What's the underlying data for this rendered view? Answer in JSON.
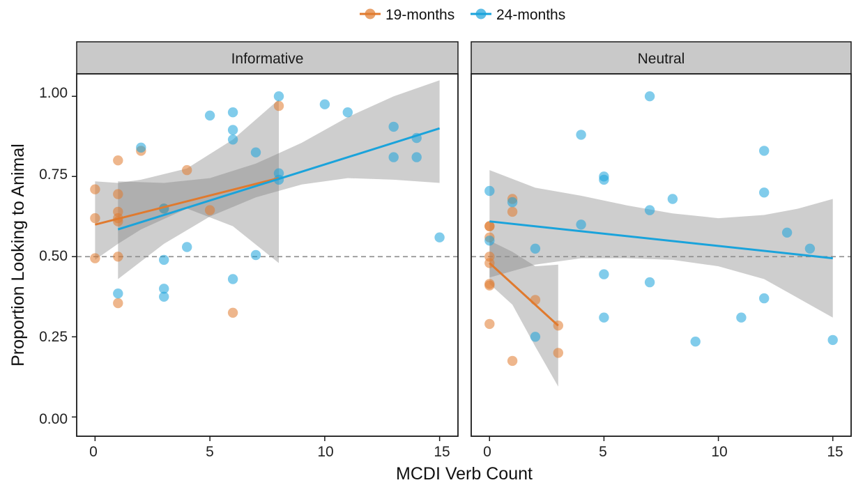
{
  "chart_data": {
    "type": "scatter",
    "xlabel": "MCDI Verb Count",
    "ylabel": "Proportion Looking to Animal",
    "xlim": [
      -0.8,
      15.8
    ],
    "ylim": [
      -0.06,
      1.07
    ],
    "x_ticks": [
      0,
      5,
      10,
      15
    ],
    "y_ticks": [
      0,
      0.25,
      0.5,
      0.75,
      1
    ],
    "x_tick_labels": [
      "0",
      "5",
      "10",
      "15"
    ],
    "y_tick_labels": [
      "0.00",
      "0.25",
      "0.50",
      "0.75",
      "1.00"
    ],
    "reference_line": {
      "y": 0.5,
      "style": "dashed",
      "color": "#8c8c8c"
    },
    "grid": false,
    "legend": {
      "position": "top-center",
      "entries": [
        {
          "label": "19-months",
          "color": "#e07a2e"
        },
        {
          "label": "24-months",
          "color": "#1aa3db"
        }
      ]
    },
    "facets": [
      {
        "label": "Informative",
        "series": [
          {
            "name": "19-months",
            "color": "#e07a2e",
            "points": [
              [
                0,
                0.71
              ],
              [
                0,
                0.62
              ],
              [
                0,
                0.495
              ],
              [
                1,
                0.8
              ],
              [
                1,
                0.695
              ],
              [
                1,
                0.64
              ],
              [
                1,
                0.62
              ],
              [
                1,
                0.61
              ],
              [
                1,
                0.5
              ],
              [
                1,
                0.355
              ],
              [
                2,
                0.83
              ],
              [
                3,
                0.65
              ],
              [
                4,
                0.77
              ],
              [
                5,
                0.645
              ],
              [
                6,
                0.325
              ],
              [
                8,
                0.97
              ]
            ],
            "fit": {
              "x": [
                0,
                8
              ],
              "y": [
                0.6,
                0.745
              ]
            },
            "ribbon": {
              "x": [
                0,
                1,
                2,
                4,
                6,
                8
              ],
              "lower": [
                0.49,
                0.54,
                0.585,
                0.65,
                0.595,
                0.48
              ],
              "upper": [
                0.735,
                0.73,
                0.74,
                0.775,
                0.865,
                0.99
              ]
            }
          },
          {
            "name": "24-months",
            "color": "#1aa3db",
            "points": [
              [
                1,
                0.385
              ],
              [
                2,
                0.84
              ],
              [
                3,
                0.65
              ],
              [
                3,
                0.49
              ],
              [
                3,
                0.4
              ],
              [
                3,
                0.375
              ],
              [
                4,
                0.53
              ],
              [
                5,
                0.94
              ],
              [
                6,
                0.95
              ],
              [
                6,
                0.895
              ],
              [
                6,
                0.865
              ],
              [
                6,
                0.43
              ],
              [
                7,
                0.825
              ],
              [
                7,
                0.505
              ],
              [
                8,
                1.0
              ],
              [
                8,
                0.76
              ],
              [
                8,
                0.74
              ],
              [
                10,
                0.975
              ],
              [
                11,
                0.95
              ],
              [
                13,
                0.905
              ],
              [
                13,
                0.81
              ],
              [
                14,
                0.87
              ],
              [
                14,
                0.81
              ],
              [
                15,
                0.56
              ]
            ],
            "fit": {
              "x": [
                1,
                15
              ],
              "y": [
                0.585,
                0.9
              ]
            },
            "ribbon": {
              "x": [
                1,
                3,
                5,
                7,
                9,
                11,
                13,
                15
              ],
              "lower": [
                0.43,
                0.54,
                0.625,
                0.685,
                0.725,
                0.745,
                0.74,
                0.73
              ],
              "upper": [
                0.735,
                0.73,
                0.745,
                0.79,
                0.855,
                0.935,
                1.0,
                1.05
              ]
            }
          }
        ]
      },
      {
        "label": "Neutral",
        "series": [
          {
            "name": "19-months",
            "color": "#e07a2e",
            "points": [
              [
                0,
                0.595
              ],
              [
                0,
                0.595
              ],
              [
                0,
                0.56
              ],
              [
                0,
                0.5
              ],
              [
                0,
                0.48
              ],
              [
                0,
                0.415
              ],
              [
                0,
                0.41
              ],
              [
                0,
                0.29
              ],
              [
                1,
                0.68
              ],
              [
                1,
                0.64
              ],
              [
                1,
                0.175
              ],
              [
                2,
                0.365
              ],
              [
                3,
                0.285
              ],
              [
                3,
                0.2
              ]
            ],
            "fit": {
              "x": [
                0,
                3
              ],
              "y": [
                0.48,
                0.285
              ]
            },
            "ribbon": {
              "x": [
                0,
                1,
                2,
                3
              ],
              "lower": [
                0.415,
                0.35,
                0.22,
                0.095
              ],
              "upper": [
                0.55,
                0.515,
                0.47,
                0.475
              ]
            }
          },
          {
            "name": "24-months",
            "color": "#1aa3db",
            "points": [
              [
                0,
                0.705
              ],
              [
                0,
                0.55
              ],
              [
                1,
                0.67
              ],
              [
                2,
                0.525
              ],
              [
                2,
                0.25
              ],
              [
                4,
                0.88
              ],
              [
                4,
                0.6
              ],
              [
                5,
                0.75
              ],
              [
                5,
                0.74
              ],
              [
                5,
                0.445
              ],
              [
                5,
                0.31
              ],
              [
                7,
                1.0
              ],
              [
                7,
                0.645
              ],
              [
                7,
                0.42
              ],
              [
                8,
                0.68
              ],
              [
                9,
                0.235
              ],
              [
                11,
                0.31
              ],
              [
                12,
                0.83
              ],
              [
                12,
                0.7
              ],
              [
                12,
                0.37
              ],
              [
                13,
                0.575
              ],
              [
                14,
                0.525
              ],
              [
                15,
                0.24
              ]
            ],
            "fit": {
              "x": [
                0,
                15
              ],
              "y": [
                0.61,
                0.495
              ]
            },
            "ribbon": {
              "x": [
                0,
                2,
                4,
                6,
                8,
                10,
                12,
                13.5,
                15
              ],
              "lower": [
                0.435,
                0.475,
                0.495,
                0.495,
                0.49,
                0.47,
                0.43,
                0.37,
                0.31
              ],
              "upper": [
                0.77,
                0.715,
                0.69,
                0.66,
                0.635,
                0.62,
                0.63,
                0.65,
                0.68
              ]
            }
          }
        ]
      }
    ]
  }
}
